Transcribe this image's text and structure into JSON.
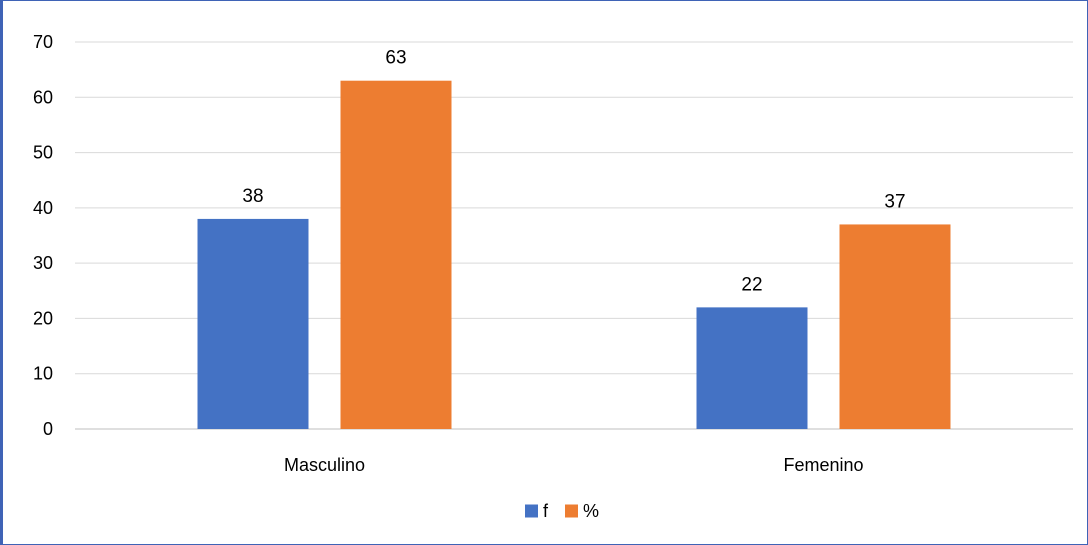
{
  "chart_data": {
    "type": "bar",
    "categories": [
      "Masculino",
      "Femenino"
    ],
    "series": [
      {
        "name": "f",
        "values": [
          38,
          22
        ],
        "color": "#4472c4"
      },
      {
        "name": "%",
        "values": [
          63,
          37
        ],
        "color": "#ed7d31"
      }
    ],
    "ylim": [
      0,
      70
    ],
    "yticks": [
      0,
      10,
      20,
      30,
      40,
      50,
      60,
      70
    ],
    "grid": true,
    "legend": "bottom-center",
    "data_labels": true
  }
}
